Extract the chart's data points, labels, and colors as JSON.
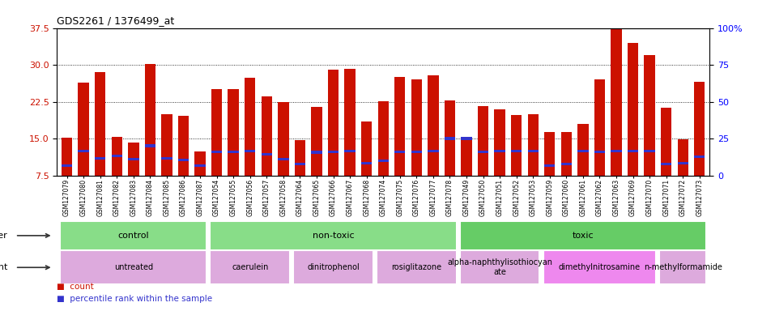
{
  "title": "GDS2261 / 1376499_at",
  "samples": [
    "GSM127079",
    "GSM127080",
    "GSM127081",
    "GSM127082",
    "GSM127083",
    "GSM127084",
    "GSM127085",
    "GSM127086",
    "GSM127087",
    "GSM127054",
    "GSM127055",
    "GSM127056",
    "GSM127057",
    "GSM127058",
    "GSM127064",
    "GSM127065",
    "GSM127066",
    "GSM127067",
    "GSM127068",
    "GSM127074",
    "GSM127075",
    "GSM127076",
    "GSM127077",
    "GSM127078",
    "GSM127049",
    "GSM127050",
    "GSM127051",
    "GSM127052",
    "GSM127053",
    "GSM127059",
    "GSM127060",
    "GSM127061",
    "GSM127062",
    "GSM127063",
    "GSM127069",
    "GSM127070",
    "GSM127071",
    "GSM127072",
    "GSM127073"
  ],
  "count_values": [
    15.1,
    26.4,
    28.6,
    15.4,
    14.2,
    30.2,
    20.0,
    19.7,
    12.4,
    25.1,
    25.0,
    27.4,
    23.5,
    22.5,
    14.7,
    21.5,
    29.0,
    29.2,
    18.4,
    22.6,
    27.5,
    27.0,
    27.8,
    22.7,
    15.3,
    21.6,
    20.9,
    19.8,
    20.0,
    16.4,
    16.3,
    17.9,
    27.0,
    37.5,
    34.5,
    32.0,
    21.2,
    14.8,
    26.5
  ],
  "percentile_values": [
    9.5,
    12.5,
    11.0,
    11.5,
    10.8,
    13.5,
    11.0,
    10.6,
    9.5,
    12.3,
    12.3,
    12.5,
    11.8,
    10.8,
    9.8,
    12.2,
    12.3,
    12.4,
    10.0,
    10.5,
    12.3,
    12.3,
    12.4,
    15.0,
    15.0,
    12.3,
    12.5,
    12.4,
    12.5,
    9.5,
    9.8,
    12.5,
    12.3,
    12.4,
    12.5,
    12.4,
    9.8,
    10.0,
    11.3
  ],
  "ylim_left": [
    7.5,
    37.5
  ],
  "ylim_right": [
    0,
    100
  ],
  "yticks_left": [
    7.5,
    15.0,
    22.5,
    30.0,
    37.5
  ],
  "yticks_right": [
    0,
    25,
    50,
    75,
    100
  ],
  "bar_color": "#cc1100",
  "percentile_color": "#3333cc",
  "group_other": [
    {
      "label": "control",
      "start": 0,
      "end": 8,
      "color": "#88dd88"
    },
    {
      "label": "non-toxic",
      "start": 9,
      "end": 23,
      "color": "#88dd88"
    },
    {
      "label": "toxic",
      "start": 24,
      "end": 38,
      "color": "#66cc66"
    }
  ],
  "group_agent": [
    {
      "label": "untreated",
      "start": 0,
      "end": 8,
      "color": "#ddaadd"
    },
    {
      "label": "caerulein",
      "start": 9,
      "end": 13,
      "color": "#ddaadd"
    },
    {
      "label": "dinitrophenol",
      "start": 14,
      "end": 18,
      "color": "#ddaadd"
    },
    {
      "label": "rosiglitazone",
      "start": 19,
      "end": 23,
      "color": "#ddaadd"
    },
    {
      "label": "alpha-naphthylisothiocyan\nate",
      "start": 24,
      "end": 28,
      "color": "#ddaadd"
    },
    {
      "label": "dimethylnitrosamine",
      "start": 29,
      "end": 35,
      "color": "#ee88ee"
    },
    {
      "label": "n-methylformamide",
      "start": 36,
      "end": 38,
      "color": "#ddaadd"
    }
  ]
}
